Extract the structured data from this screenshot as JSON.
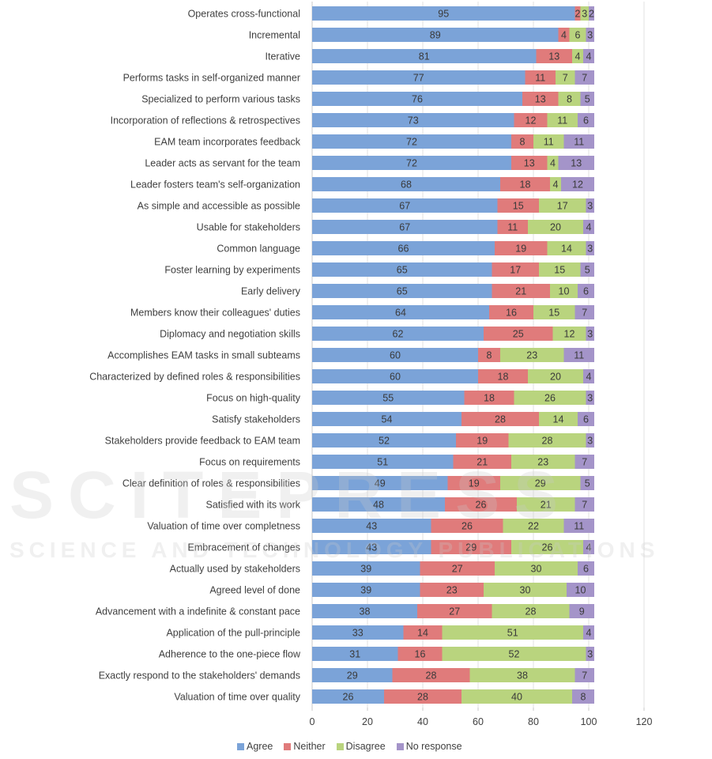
{
  "watermark": {
    "line1": "SCITEPRESS",
    "line2": "SCIENCE AND TECHNOLOGY PUBLICATIONS"
  },
  "chart_data": {
    "type": "bar",
    "orientation": "horizontal",
    "stacked": true,
    "title": "",
    "xlabel": "",
    "ylabel": "",
    "xlim": [
      0,
      120
    ],
    "xticks": [
      0,
      20,
      40,
      60,
      80,
      100,
      120
    ],
    "grid": true,
    "legend_position": "bottom-left",
    "categories": [
      "Operates cross-functional",
      "Incremental",
      "Iterative",
      "Performs tasks in self-organized manner",
      "Specialized to perform various tasks",
      "Incorporation of reflections & retrospectives",
      "EAM team incorporates feedback",
      "Leader acts as servant for the team",
      "Leader fosters team's self-organization",
      "As simple and accessible as possible",
      "Usable for stakeholders",
      "Common language",
      "Foster learning by experiments",
      "Early delivery",
      "Members know their colleagues' duties",
      "Diplomacy and negotiation skills",
      "Accomplishes EAM tasks in small subteams",
      "Characterized by defined roles & responsibilities",
      "Focus on high-quality",
      "Satisfy stakeholders",
      "Stakeholders provide feedback to EAM team",
      "Focus on requirements",
      "Clear definition of roles & responsibilities",
      "Satisfied with its work",
      "Valuation of time over completness",
      "Embracement of changes",
      "Actually used by stakeholders",
      "Agreed level of done",
      "Advancement with a indefinite & constant pace",
      "Application of the pull-principle",
      "Adherence to the one-piece flow",
      "Exactly respond to the stakeholders' demands",
      "Valuation of time over quality"
    ],
    "series": [
      {
        "name": "Agree",
        "color": "#7ba3d8",
        "values": [
          95,
          89,
          81,
          77,
          76,
          73,
          72,
          72,
          68,
          67,
          67,
          66,
          65,
          65,
          64,
          62,
          60,
          60,
          55,
          54,
          52,
          51,
          49,
          48,
          43,
          43,
          39,
          39,
          38,
          33,
          31,
          29,
          26
        ]
      },
      {
        "name": "Neither",
        "color": "#e07b7b",
        "values": [
          2,
          4,
          13,
          11,
          13,
          12,
          8,
          13,
          18,
          15,
          11,
          19,
          17,
          21,
          16,
          25,
          8,
          18,
          18,
          28,
          19,
          21,
          19,
          26,
          26,
          29,
          27,
          23,
          27,
          14,
          16,
          28,
          28
        ]
      },
      {
        "name": "Disagree",
        "color": "#b9d47e",
        "values": [
          3,
          6,
          4,
          7,
          8,
          11,
          11,
          4,
          4,
          17,
          20,
          14,
          15,
          10,
          15,
          12,
          23,
          20,
          26,
          14,
          28,
          23,
          29,
          21,
          22,
          26,
          30,
          30,
          28,
          51,
          52,
          38,
          40
        ]
      },
      {
        "name": "No response",
        "color": "#a494c9",
        "values": [
          2,
          3,
          4,
          7,
          5,
          6,
          11,
          13,
          12,
          3,
          4,
          3,
          5,
          6,
          7,
          3,
          11,
          4,
          3,
          6,
          3,
          7,
          5,
          7,
          11,
          4,
          6,
          10,
          9,
          4,
          3,
          7,
          8
        ]
      }
    ]
  }
}
